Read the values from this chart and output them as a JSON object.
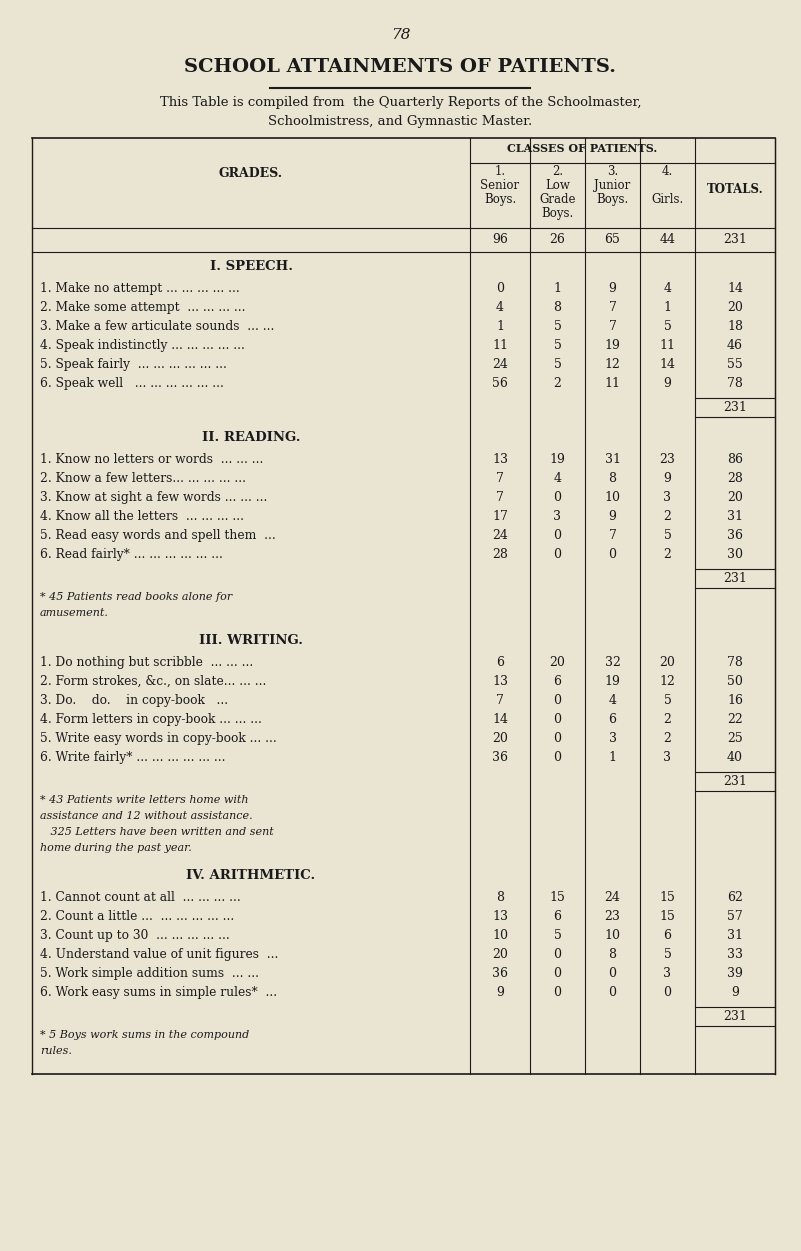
{
  "page_number": "78",
  "title": "SCHOOL ATTAINMENTS OF PATIENTS.",
  "subtitle1": "This Table is compiled from  the Quarterly Reports of the Schoolmaster,",
  "subtitle2": "Schoolmistress, and Gymnastic Master.",
  "classes_header": "CLASSES OF PATIENTS.",
  "grades_label": "GRADES.",
  "totals_header": "TOTALS.",
  "col_totals_row": [
    "96",
    "26",
    "65",
    "44",
    "231"
  ],
  "bg_color": "#EAE4D3",
  "text_color": "#1a1a1a",
  "sections": [
    {
      "title": "I. SPEECH.",
      "rows": [
        {
          "label": "1. Make no attempt ... ... ... ... ...",
          "vals": [
            "0",
            "1",
            "9",
            "4",
            "14"
          ]
        },
        {
          "label": "2. Make some attempt  ... ... ... ...",
          "vals": [
            "4",
            "8",
            "7",
            "1",
            "20"
          ]
        },
        {
          "label": "3. Make a few articulate sounds  ... ...",
          "vals": [
            "1",
            "5",
            "7",
            "5",
            "18"
          ]
        },
        {
          "label": "4. Speak indistinctly ... ... ... ... ...",
          "vals": [
            "11",
            "5",
            "19",
            "11",
            "46"
          ]
        },
        {
          "label": "5. Speak fairly  ... ... ... ... ... ...",
          "vals": [
            "24",
            "5",
            "12",
            "14",
            "55"
          ]
        },
        {
          "label": "6. Speak well   ... ... ... ... ... ...",
          "vals": [
            "56",
            "2",
            "11",
            "9",
            "78"
          ]
        }
      ],
      "subtotal": "231",
      "footnotes": []
    },
    {
      "title": "II. READING.",
      "rows": [
        {
          "label": "1. Know no letters or words  ... ... ...",
          "vals": [
            "13",
            "19",
            "31",
            "23",
            "86"
          ]
        },
        {
          "label": "2. Know a few letters... ... ... ... ...",
          "vals": [
            "7",
            "4",
            "8",
            "9",
            "28"
          ]
        },
        {
          "label": "3. Know at sight a few words ... ... ...",
          "vals": [
            "7",
            "0",
            "10",
            "3",
            "20"
          ]
        },
        {
          "label": "4. Know all the letters  ... ... ... ...",
          "vals": [
            "17",
            "3",
            "9",
            "2",
            "31"
          ]
        },
        {
          "label": "5. Read easy words and spell them  ...",
          "vals": [
            "24",
            "0",
            "7",
            "5",
            "36"
          ]
        },
        {
          "label": "6. Read fairly* ... ... ... ... ... ...",
          "vals": [
            "28",
            "0",
            "0",
            "2",
            "30"
          ]
        }
      ],
      "subtotal": "231",
      "footnotes": [
        "* 45 Patients read books alone for\namusement."
      ]
    },
    {
      "title": "III. WRITING.",
      "rows": [
        {
          "label": "1. Do nothing but scribble  ... ... ...",
          "vals": [
            "6",
            "20",
            "32",
            "20",
            "78"
          ]
        },
        {
          "label": "2. Form strokes, &c., on slate... ... ...",
          "vals": [
            "13",
            "6",
            "19",
            "12",
            "50"
          ]
        },
        {
          "label": "3. Do.    do.    in copy-book   ...",
          "vals": [
            "7",
            "0",
            "4",
            "5",
            "16"
          ]
        },
        {
          "label": "4. Form letters in copy-book ... ... ...",
          "vals": [
            "14",
            "0",
            "6",
            "2",
            "22"
          ]
        },
        {
          "label": "5. Write easy words in copy-book ... ...",
          "vals": [
            "20",
            "0",
            "3",
            "2",
            "25"
          ]
        },
        {
          "label": "6. Write fairly* ... ... ... ... ... ...",
          "vals": [
            "36",
            "0",
            "1",
            "3",
            "40"
          ]
        }
      ],
      "subtotal": "231",
      "footnotes": [
        "* 43 Patients write letters home with\nassistance and 12 without assistance.\n   325 Letters have been written and sent\nhome during the past year."
      ]
    },
    {
      "title": "IV. ARITHMETIC.",
      "rows": [
        {
          "label": "1. Cannot count at all  ... ... ... ...",
          "vals": [
            "8",
            "15",
            "24",
            "15",
            "62"
          ]
        },
        {
          "label": "2. Count a little ...  ... ... ... ... ...",
          "vals": [
            "13",
            "6",
            "23",
            "15",
            "57"
          ]
        },
        {
          "label": "3. Count up to 30  ... ... ... ... ...",
          "vals": [
            "10",
            "5",
            "10",
            "6",
            "31"
          ]
        },
        {
          "label": "4. Understand value of unit figures  ...",
          "vals": [
            "20",
            "0",
            "8",
            "5",
            "33"
          ]
        },
        {
          "label": "5. Work simple addition sums  ... ...",
          "vals": [
            "36",
            "0",
            "0",
            "3",
            "39"
          ]
        },
        {
          "label": "6. Work easy sums in simple rules*  ...",
          "vals": [
            "9",
            "0",
            "0",
            "0",
            "9"
          ]
        }
      ],
      "subtotal": "231",
      "footnotes": [
        "* 5 Boys work sums in the compound\nrules."
      ]
    }
  ]
}
